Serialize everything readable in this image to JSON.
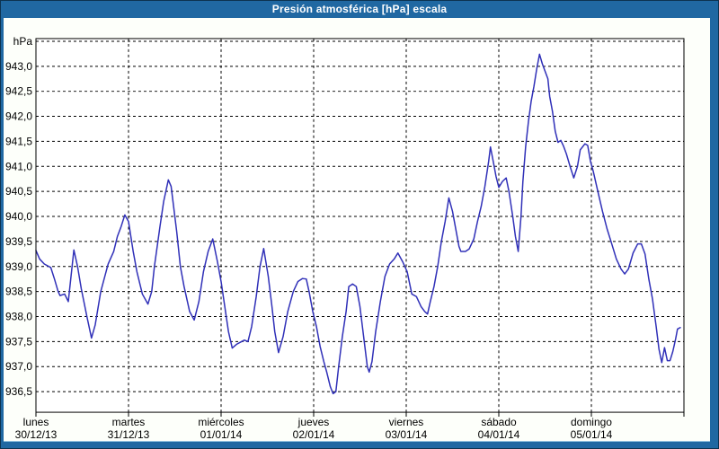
{
  "window": {
    "title": "Presión atmosférica [hPa] escala"
  },
  "colors": {
    "titlebar_bg": "#2068a2",
    "window_border_dark": "#0d3350",
    "content_bg": "#fdfffa",
    "plot_bg": "#ffffff",
    "grid": "#000000",
    "axis_text": "#000000",
    "title_text": "#ffffff",
    "line": "#3030b8"
  },
  "chart_data": {
    "type": "line",
    "title": "Presión atmosférica [hPa] escala",
    "y_unit_label": "hPa",
    "ylabel": "hPa",
    "ylim": [
      936.25,
      943.5
    ],
    "ytick_step": 0.5,
    "yticks": [
      943.0,
      942.5,
      942.0,
      941.5,
      941.0,
      940.5,
      940.0,
      939.5,
      939.0,
      938.5,
      938.0,
      937.5,
      937.0,
      936.5
    ],
    "ytick_labels": [
      "943,0",
      "942,5",
      "942,0",
      "941,5",
      "941,0",
      "940,5",
      "940,0",
      "939,5",
      "939,0",
      "938,5",
      "938,0",
      "937,5",
      "937,0",
      "936,5"
    ],
    "grid": "dashed-black",
    "legend": "none",
    "x_categories": [
      {
        "day": "lunes",
        "date": "30/12/13"
      },
      {
        "day": "martes",
        "date": "31/12/13"
      },
      {
        "day": "miércoles",
        "date": "01/01/14"
      },
      {
        "day": "jueves",
        "date": "02/01/14"
      },
      {
        "day": "viernes",
        "date": "03/01/14"
      },
      {
        "day": "sábado",
        "date": "04/01/14"
      },
      {
        "day": "domingo",
        "date": "05/01/14"
      }
    ],
    "series": [
      {
        "name": "Presión atmosférica",
        "color": "#3030b8",
        "x_unit": "days_from_2013-12-30",
        "points": [
          [
            0.0,
            939.32
          ],
          [
            0.04,
            939.15
          ],
          [
            0.09,
            939.05
          ],
          [
            0.16,
            938.98
          ],
          [
            0.2,
            938.75
          ],
          [
            0.24,
            938.5
          ],
          [
            0.26,
            938.42
          ],
          [
            0.31,
            938.45
          ],
          [
            0.35,
            938.3
          ],
          [
            0.41,
            939.33
          ],
          [
            0.45,
            939.0
          ],
          [
            0.49,
            938.55
          ],
          [
            0.55,
            938.0
          ],
          [
            0.6,
            937.57
          ],
          [
            0.64,
            937.83
          ],
          [
            0.7,
            938.5
          ],
          [
            0.78,
            939.05
          ],
          [
            0.84,
            939.3
          ],
          [
            0.88,
            939.6
          ],
          [
            0.92,
            939.8
          ],
          [
            0.96,
            940.03
          ],
          [
            1.0,
            939.9
          ],
          [
            1.05,
            939.3
          ],
          [
            1.09,
            938.9
          ],
          [
            1.15,
            938.45
          ],
          [
            1.21,
            938.25
          ],
          [
            1.25,
            938.5
          ],
          [
            1.28,
            939.0
          ],
          [
            1.34,
            939.8
          ],
          [
            1.38,
            940.3
          ],
          [
            1.43,
            940.73
          ],
          [
            1.46,
            940.6
          ],
          [
            1.52,
            939.7
          ],
          [
            1.56,
            939.0
          ],
          [
            1.6,
            938.6
          ],
          [
            1.66,
            938.1
          ],
          [
            1.71,
            937.93
          ],
          [
            1.76,
            938.3
          ],
          [
            1.81,
            938.9
          ],
          [
            1.86,
            939.3
          ],
          [
            1.91,
            939.55
          ],
          [
            1.96,
            939.1
          ],
          [
            2.0,
            938.7
          ],
          [
            2.04,
            938.2
          ],
          [
            2.08,
            937.7
          ],
          [
            2.12,
            937.37
          ],
          [
            2.17,
            937.45
          ],
          [
            2.22,
            937.5
          ],
          [
            2.25,
            937.53
          ],
          [
            2.29,
            937.5
          ],
          [
            2.33,
            937.8
          ],
          [
            2.38,
            938.4
          ],
          [
            2.42,
            939.0
          ],
          [
            2.46,
            939.36
          ],
          [
            2.51,
            938.8
          ],
          [
            2.55,
            938.2
          ],
          [
            2.58,
            937.7
          ],
          [
            2.62,
            937.28
          ],
          [
            2.67,
            937.6
          ],
          [
            2.72,
            938.1
          ],
          [
            2.78,
            938.5
          ],
          [
            2.83,
            938.7
          ],
          [
            2.88,
            938.76
          ],
          [
            2.92,
            938.75
          ],
          [
            2.95,
            938.5
          ],
          [
            2.99,
            938.1
          ],
          [
            3.03,
            937.8
          ],
          [
            3.07,
            937.4
          ],
          [
            3.11,
            937.1
          ],
          [
            3.14,
            936.9
          ],
          [
            3.18,
            936.6
          ],
          [
            3.21,
            936.46
          ],
          [
            3.24,
            936.5
          ],
          [
            3.27,
            937.0
          ],
          [
            3.31,
            937.6
          ],
          [
            3.35,
            938.1
          ],
          [
            3.38,
            938.6
          ],
          [
            3.42,
            938.65
          ],
          [
            3.46,
            938.6
          ],
          [
            3.5,
            938.2
          ],
          [
            3.54,
            937.6
          ],
          [
            3.58,
            937.0
          ],
          [
            3.6,
            936.89
          ],
          [
            3.63,
            937.1
          ],
          [
            3.67,
            937.7
          ],
          [
            3.72,
            938.3
          ],
          [
            3.77,
            938.8
          ],
          [
            3.82,
            939.05
          ],
          [
            3.87,
            939.15
          ],
          [
            3.91,
            939.27
          ],
          [
            3.96,
            939.1
          ],
          [
            4.01,
            938.9
          ],
          [
            4.06,
            938.45
          ],
          [
            4.11,
            938.4
          ],
          [
            4.16,
            938.2
          ],
          [
            4.2,
            938.1
          ],
          [
            4.23,
            938.05
          ],
          [
            4.26,
            938.3
          ],
          [
            4.3,
            938.6
          ],
          [
            4.34,
            939.0
          ],
          [
            4.38,
            939.5
          ],
          [
            4.42,
            939.9
          ],
          [
            4.46,
            940.37
          ],
          [
            4.5,
            940.1
          ],
          [
            4.54,
            939.7
          ],
          [
            4.57,
            939.4
          ],
          [
            4.59,
            939.3
          ],
          [
            4.64,
            939.3
          ],
          [
            4.68,
            939.35
          ],
          [
            4.73,
            939.55
          ],
          [
            4.77,
            939.9
          ],
          [
            4.81,
            940.2
          ],
          [
            4.85,
            940.6
          ],
          [
            4.89,
            941.1
          ],
          [
            4.91,
            941.39
          ],
          [
            4.94,
            941.1
          ],
          [
            4.97,
            940.8
          ],
          [
            5.0,
            940.58
          ],
          [
            5.04,
            940.7
          ],
          [
            5.08,
            940.77
          ],
          [
            5.11,
            940.5
          ],
          [
            5.15,
            940.0
          ],
          [
            5.18,
            939.6
          ],
          [
            5.21,
            939.3
          ],
          [
            5.24,
            940.0
          ],
          [
            5.26,
            940.7
          ],
          [
            5.29,
            941.4
          ],
          [
            5.32,
            941.9
          ],
          [
            5.35,
            942.3
          ],
          [
            5.38,
            942.6
          ],
          [
            5.41,
            942.95
          ],
          [
            5.44,
            943.24
          ],
          [
            5.47,
            943.05
          ],
          [
            5.5,
            942.9
          ],
          [
            5.53,
            942.75
          ],
          [
            5.55,
            942.4
          ],
          [
            5.58,
            942.1
          ],
          [
            5.61,
            941.7
          ],
          [
            5.64,
            941.48
          ],
          [
            5.67,
            941.52
          ],
          [
            5.7,
            941.4
          ],
          [
            5.73,
            941.25
          ],
          [
            5.77,
            941.0
          ],
          [
            5.81,
            940.77
          ],
          [
            5.85,
            941.0
          ],
          [
            5.88,
            941.33
          ],
          [
            5.93,
            941.45
          ],
          [
            5.96,
            941.42
          ],
          [
            5.99,
            941.1
          ],
          [
            6.02,
            940.9
          ],
          [
            6.07,
            940.5
          ],
          [
            6.12,
            940.1
          ],
          [
            6.17,
            939.75
          ],
          [
            6.22,
            939.45
          ],
          [
            6.27,
            939.15
          ],
          [
            6.32,
            938.95
          ],
          [
            6.36,
            938.85
          ],
          [
            6.4,
            938.95
          ],
          [
            6.45,
            939.27
          ],
          [
            6.5,
            939.45
          ],
          [
            6.54,
            939.45
          ],
          [
            6.58,
            939.25
          ],
          [
            6.62,
            938.75
          ],
          [
            6.66,
            938.35
          ],
          [
            6.7,
            937.8
          ],
          [
            6.73,
            937.35
          ],
          [
            6.76,
            937.08
          ],
          [
            6.79,
            937.38
          ],
          [
            6.82,
            937.12
          ],
          [
            6.85,
            937.12
          ],
          [
            6.88,
            937.3
          ],
          [
            6.91,
            937.55
          ],
          [
            6.93,
            937.75
          ],
          [
            6.96,
            937.78
          ]
        ]
      }
    ]
  }
}
